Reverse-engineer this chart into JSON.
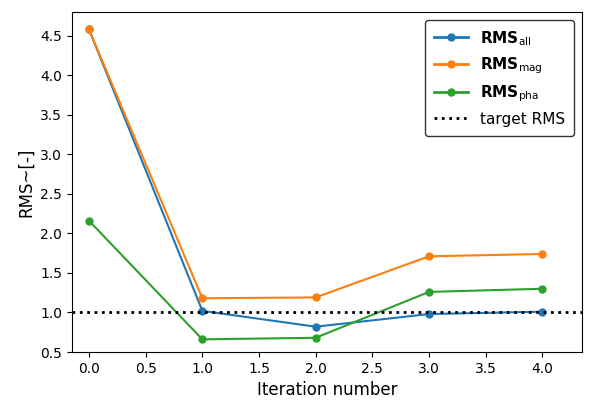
{
  "x": [
    0,
    1,
    2,
    3,
    4
  ],
  "rms_all": [
    4.58,
    1.02,
    0.82,
    0.98,
    1.01
  ],
  "rms_mag": [
    4.58,
    1.18,
    1.19,
    1.71,
    1.74
  ],
  "rms_pha": [
    2.16,
    0.66,
    0.68,
    1.26,
    1.3
  ],
  "target_rms": 1.0,
  "color_all": "#1f77b4",
  "color_mag": "#ff7f0e",
  "color_pha": "#2ca02c",
  "color_target": "black",
  "xlabel": "Iteration number",
  "ylabel": "RMS~[-]",
  "legend_target": "target RMS",
  "xlim": [
    -0.15,
    4.35
  ],
  "ylim": [
    0.5,
    4.8
  ],
  "label_fontsize": 12,
  "tick_labelsize": 10,
  "legend_fontsize": 11
}
